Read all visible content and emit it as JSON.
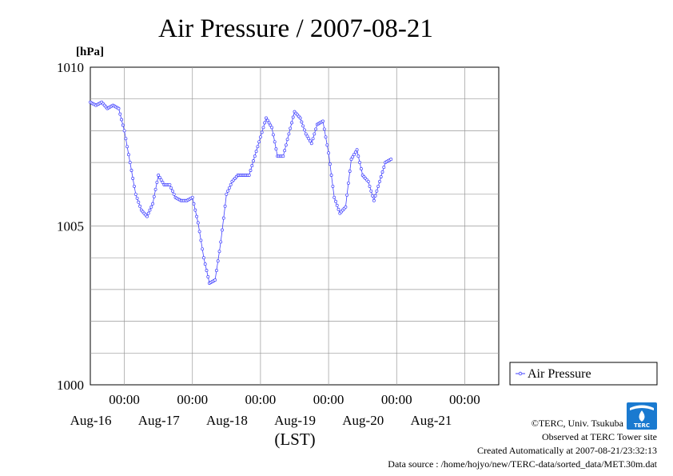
{
  "chart_data": {
    "type": "line",
    "title": "Air Pressure / 2007-08-21",
    "ylabel": "[hPa]",
    "xlabel": "(LST)",
    "ylim": [
      1000,
      1010
    ],
    "yticks": [
      {
        "value": 1010,
        "label": "1010"
      },
      {
        "value": 1005,
        "label": "1005"
      },
      {
        "value": 1000,
        "label": "1000"
      }
    ],
    "xlim": [
      "2007-08-15T12:00",
      "2007-08-21T12:00"
    ],
    "xticks": [
      {
        "time": "2007-08-16T00:00",
        "label": "00:00",
        "date": "Aug-16"
      },
      {
        "time": "2007-08-17T00:00",
        "label": "00:00",
        "date": "Aug-17"
      },
      {
        "time": "2007-08-18T00:00",
        "label": "00:00",
        "date": "Aug-18"
      },
      {
        "time": "2007-08-19T00:00",
        "label": "00:00",
        "date": "Aug-19"
      },
      {
        "time": "2007-08-20T00:00",
        "label": "00:00",
        "date": "Aug-20"
      },
      {
        "time": "2007-08-21T00:00",
        "label": "00:00",
        "date": "Aug-21"
      }
    ],
    "grid": true,
    "legend": "right",
    "series": [
      {
        "name": "Air Pressure",
        "color": "#4040ff",
        "points": [
          [
            "2007-08-15T12:00",
            1008.9
          ],
          [
            "2007-08-15T14:00",
            1008.8
          ],
          [
            "2007-08-15T16:00",
            1008.9
          ],
          [
            "2007-08-15T18:00",
            1008.7
          ],
          [
            "2007-08-15T20:00",
            1008.8
          ],
          [
            "2007-08-15T22:00",
            1008.7
          ],
          [
            "2007-08-16T00:00",
            1008.0
          ],
          [
            "2007-08-16T02:00",
            1007.0
          ],
          [
            "2007-08-16T04:00",
            1006.0
          ],
          [
            "2007-08-16T06:00",
            1005.5
          ],
          [
            "2007-08-16T08:00",
            1005.3
          ],
          [
            "2007-08-16T10:00",
            1005.7
          ],
          [
            "2007-08-16T12:00",
            1006.6
          ],
          [
            "2007-08-16T14:00",
            1006.3
          ],
          [
            "2007-08-16T16:00",
            1006.3
          ],
          [
            "2007-08-16T18:00",
            1005.9
          ],
          [
            "2007-08-16T20:00",
            1005.8
          ],
          [
            "2007-08-16T22:00",
            1005.8
          ],
          [
            "2007-08-17T00:00",
            1005.9
          ],
          [
            "2007-08-17T02:00",
            1005.1
          ],
          [
            "2007-08-17T04:00",
            1004.0
          ],
          [
            "2007-08-17T06:00",
            1003.2
          ],
          [
            "2007-08-17T08:00",
            1003.3
          ],
          [
            "2007-08-17T10:00",
            1004.5
          ],
          [
            "2007-08-17T12:00",
            1006.0
          ],
          [
            "2007-08-17T14:00",
            1006.4
          ],
          [
            "2007-08-17T16:00",
            1006.6
          ],
          [
            "2007-08-17T18:00",
            1006.6
          ],
          [
            "2007-08-17T20:00",
            1006.6
          ],
          [
            "2007-08-17T22:00",
            1007.2
          ],
          [
            "2007-08-18T00:00",
            1007.8
          ],
          [
            "2007-08-18T02:00",
            1008.4
          ],
          [
            "2007-08-18T04:00",
            1008.1
          ],
          [
            "2007-08-18T06:00",
            1007.2
          ],
          [
            "2007-08-18T08:00",
            1007.2
          ],
          [
            "2007-08-18T10:00",
            1007.9
          ],
          [
            "2007-08-18T12:00",
            1008.6
          ],
          [
            "2007-08-18T14:00",
            1008.4
          ],
          [
            "2007-08-18T16:00",
            1007.9
          ],
          [
            "2007-08-18T18:00",
            1007.6
          ],
          [
            "2007-08-18T20:00",
            1008.2
          ],
          [
            "2007-08-18T22:00",
            1008.3
          ],
          [
            "2007-08-19T00:00",
            1007.3
          ],
          [
            "2007-08-19T02:00",
            1005.9
          ],
          [
            "2007-08-19T04:00",
            1005.4
          ],
          [
            "2007-08-19T06:00",
            1005.6
          ],
          [
            "2007-08-19T08:00",
            1007.1
          ],
          [
            "2007-08-19T10:00",
            1007.4
          ],
          [
            "2007-08-19T12:00",
            1006.6
          ],
          [
            "2007-08-19T14:00",
            1006.4
          ],
          [
            "2007-08-19T16:00",
            1005.8
          ],
          [
            "2007-08-19T18:00",
            1006.4
          ],
          [
            "2007-08-19T20:00",
            1007.0
          ],
          [
            "2007-08-19T22:00",
            1007.1
          ]
        ]
      }
    ]
  },
  "legend": {
    "label": "Air Pressure"
  },
  "credits": {
    "copyright": "©TERC, Univ. Tsukuba",
    "observed": "Observed at TERC Tower site",
    "created": "Created Automatically at 2007-08-21/23:32:13",
    "source": "Data source : /home/hojyo/new/TERC-data/sorted_data/MET.30m.dat",
    "logo_text": "TERC"
  }
}
